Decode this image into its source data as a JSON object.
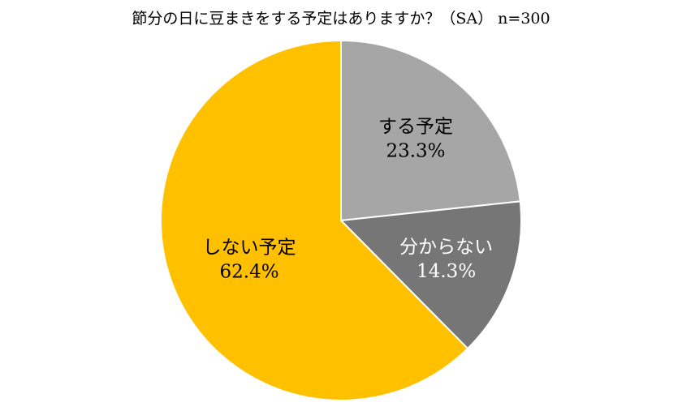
{
  "chart_data": {
    "type": "pie",
    "title": "節分の日に豆まきをする予定はありますか？（SA） n=300",
    "start": "top",
    "direction": "clockwise",
    "slices": [
      {
        "label": "する予定",
        "value": 23.3,
        "value_label": "23.3%",
        "color": "#A6A6A6",
        "text_color": "#000000"
      },
      {
        "label": "分からない",
        "value": 14.3,
        "value_label": "14.3%",
        "color": "#767676",
        "text_color": "#FFFFFF"
      },
      {
        "label": "しない予定",
        "value": 62.4,
        "value_label": "62.4%",
        "color": "#FFC000",
        "text_color": "#000000"
      }
    ],
    "legend": "none"
  }
}
